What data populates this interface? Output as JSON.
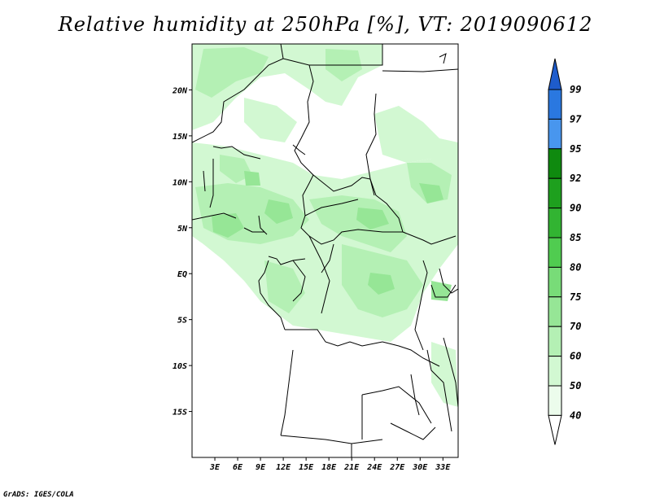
{
  "title": "Relative humidity at 250hPa [%], VT: 2019090612",
  "credit": "GrADS: IGES/COLA",
  "map": {
    "lon_ticks": [
      "3E",
      "6E",
      "9E",
      "12E",
      "15E",
      "18E",
      "21E",
      "24E",
      "27E",
      "30E",
      "33E"
    ],
    "lat_ticks": [
      "20N",
      "15N",
      "10N",
      "5N",
      "EQ",
      "5S",
      "10S",
      "15S"
    ],
    "lon_range": [
      0,
      35
    ],
    "lat_range": [
      -20,
      25
    ]
  },
  "colorbar": {
    "levels": [
      "99",
      "97",
      "95",
      "92",
      "90",
      "85",
      "80",
      "75",
      "70",
      "60",
      "50",
      "40"
    ],
    "colors": [
      "#1e5ccc",
      "#2a78e0",
      "#4896ee",
      "#0f8a0f",
      "#1ea01e",
      "#32b432",
      "#50cc50",
      "#78dc78",
      "#96e696",
      "#b4f0b4",
      "#d2f8d2",
      "#ecfcec"
    ]
  },
  "colors": {
    "humid_light": "#d2f8d2",
    "humid_mid": "#b4f0b4",
    "humid_dark": "#96e696",
    "border": "#000000"
  }
}
